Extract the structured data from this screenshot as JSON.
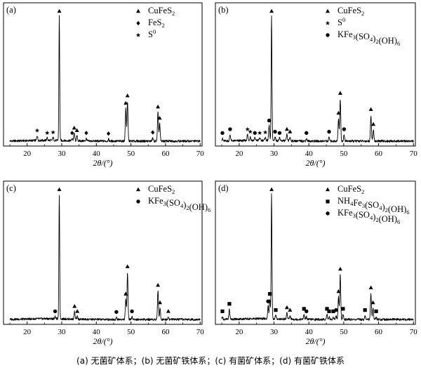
{
  "chart_data": [
    {
      "type": "line",
      "panel_label": "(a)",
      "xlabel": "2θ/(°)",
      "xlim": [
        15,
        70
      ],
      "xticks": [
        "20",
        "30",
        "40",
        "50",
        "60",
        "70"
      ],
      "legend": [
        {
          "marker": "triangle",
          "text": "CuFeS",
          "sub": "2",
          "sup": ""
        },
        {
          "marker": "diamond",
          "text": "FeS",
          "sub": "2",
          "sup": ""
        },
        {
          "marker": "star",
          "text": "S",
          "sub": "",
          "sup": "0"
        }
      ],
      "peaks": [
        {
          "x": 22.9,
          "h": 0.04,
          "marker": "star"
        },
        {
          "x": 25.8,
          "h": 0.02,
          "marker": "star"
        },
        {
          "x": 27.5,
          "h": 0.025,
          "marker": "star"
        },
        {
          "x": 29.3,
          "h": 1.0,
          "marker": "triangle"
        },
        {
          "x": 33.0,
          "h": 0.02,
          "marker": "diamond"
        },
        {
          "x": 33.6,
          "h": 0.06,
          "marker": "triangle"
        },
        {
          "x": 34.4,
          "h": 0.04,
          "marker": "triangle"
        },
        {
          "x": 37.1,
          "h": 0.02,
          "marker": "diamond"
        },
        {
          "x": 43.5,
          "h": 0.015,
          "marker": "diamond"
        },
        {
          "x": 48.5,
          "h": 0.26,
          "marker": "triangle"
        },
        {
          "x": 49.0,
          "h": 0.32,
          "marker": "triangle"
        },
        {
          "x": 56.3,
          "h": 0.025,
          "marker": "diamond"
        },
        {
          "x": 57.8,
          "h": 0.23,
          "marker": "triangle"
        },
        {
          "x": 58.3,
          "h": 0.14,
          "marker": "triangle"
        }
      ]
    },
    {
      "type": "line",
      "panel_label": "(b)",
      "xlabel": "2θ/(°)",
      "xlim": [
        15,
        70
      ],
      "xticks": [
        "20",
        "30",
        "40",
        "50",
        "60",
        "70"
      ],
      "legend": [
        {
          "marker": "triangle",
          "text": "CuFeS",
          "sub": "2",
          "sup": ""
        },
        {
          "marker": "star",
          "text": "S",
          "sub": "",
          "sup": "0"
        },
        {
          "marker": "circle",
          "text": "KFe",
          "sub": "3",
          "sup": "",
          "rest": "(SO",
          "sub2": "4",
          "rest2": ")",
          "sub3": "2",
          "rest3": "(OH)",
          "sub4": "6"
        }
      ],
      "peaks": [
        {
          "x": 15.2,
          "h": 0.02,
          "marker": "circle"
        },
        {
          "x": 17.4,
          "h": 0.05,
          "marker": "circle"
        },
        {
          "x": 22.4,
          "h": 0.05,
          "marker": "star"
        },
        {
          "x": 23.2,
          "h": 0.03,
          "marker": "star"
        },
        {
          "x": 24.5,
          "h": 0.02,
          "marker": "circle"
        },
        {
          "x": 25.9,
          "h": 0.02,
          "marker": "star"
        },
        {
          "x": 27.5,
          "h": 0.025,
          "marker": "star"
        },
        {
          "x": 28.6,
          "h": 0.12,
          "marker": "circle"
        },
        {
          "x": 29.3,
          "h": 1.0,
          "marker": "triangle"
        },
        {
          "x": 30.3,
          "h": 0.03,
          "marker": "circle"
        },
        {
          "x": 31.6,
          "h": 0.02,
          "marker": "circle"
        },
        {
          "x": 33.7,
          "h": 0.05,
          "marker": "triangle"
        },
        {
          "x": 34.6,
          "h": 0.03,
          "marker": "triangle"
        },
        {
          "x": 39.3,
          "h": 0.02,
          "marker": "circle"
        },
        {
          "x": 45.8,
          "h": 0.03,
          "marker": "circle"
        },
        {
          "x": 48.5,
          "h": 0.18,
          "marker": "triangle"
        },
        {
          "x": 49.0,
          "h": 0.34,
          "marker": "triangle"
        },
        {
          "x": 50.1,
          "h": 0.05,
          "marker": "circle"
        },
        {
          "x": 57.8,
          "h": 0.21,
          "marker": "triangle"
        },
        {
          "x": 58.5,
          "h": 0.09,
          "marker": "triangle"
        }
      ]
    },
    {
      "type": "line",
      "panel_label": "(c)",
      "xlabel": "2θ/(°)",
      "xlim": [
        15,
        70
      ],
      "xticks": [
        "20",
        "30",
        "40",
        "50",
        "60",
        "70"
      ],
      "legend": [
        {
          "marker": "triangle",
          "text": "CuFeS",
          "sub": "2",
          "sup": ""
        },
        {
          "marker": "circle",
          "text": "KFe",
          "sub": "3",
          "sup": "",
          "rest": "(SO",
          "sub2": "4",
          "rest2": ")",
          "sub3": "2",
          "rest3": "(OH)",
          "sub4": "6"
        }
      ],
      "peaks": [
        {
          "x": 28.1,
          "h": 0.02,
          "marker": "circle"
        },
        {
          "x": 29.3,
          "h": 1.0,
          "marker": "triangle"
        },
        {
          "x": 33.7,
          "h": 0.06,
          "marker": "triangle"
        },
        {
          "x": 34.5,
          "h": 0.02,
          "marker": "triangle"
        },
        {
          "x": 45.8,
          "h": 0.015,
          "marker": "circle"
        },
        {
          "x": 48.5,
          "h": 0.16,
          "marker": "triangle"
        },
        {
          "x": 49.0,
          "h": 0.38,
          "marker": "triangle"
        },
        {
          "x": 50.3,
          "h": 0.02,
          "marker": "circle"
        },
        {
          "x": 57.8,
          "h": 0.23,
          "marker": "triangle"
        },
        {
          "x": 58.4,
          "h": 0.09,
          "marker": "triangle"
        },
        {
          "x": 60.8,
          "h": 0.02,
          "marker": "triangle"
        }
      ]
    },
    {
      "type": "line",
      "panel_label": "(d)",
      "xlabel": "2θ/(°)",
      "xlim": [
        15,
        70
      ],
      "xticks": [
        "20",
        "30",
        "40",
        "50",
        "60",
        "70"
      ],
      "legend": [
        {
          "marker": "triangle",
          "text": "CuFeS",
          "sub": "2",
          "sup": ""
        },
        {
          "marker": "square",
          "text": "NH",
          "sub": "4",
          "sup": "",
          "rest": "Fe",
          "sub2": "3",
          "rest2": "(SO",
          "sub3": "4",
          "rest3": ")",
          "sub4": "2",
          "rest4": "(OH)",
          "sub5": "6"
        },
        {
          "marker": "circle",
          "text": "KFe",
          "sub": "3",
          "sup": "",
          "rest": "(SO",
          "sub2": "4",
          "rest2": ")",
          "sub3": "2",
          "rest3": "(OH)",
          "sub4": "6"
        }
      ],
      "peaks": [
        {
          "x": 15.2,
          "h": 0.02,
          "marker": "square"
        },
        {
          "x": 17.2,
          "h": 0.08,
          "marker": "square"
        },
        {
          "x": 28.3,
          "h": 0.1,
          "marker": "circle"
        },
        {
          "x": 28.8,
          "h": 0.16,
          "marker": "square"
        },
        {
          "x": 29.3,
          "h": 1.0,
          "marker": "triangle"
        },
        {
          "x": 30.5,
          "h": 0.03,
          "marker": "square"
        },
        {
          "x": 33.7,
          "h": 0.05,
          "marker": "triangle"
        },
        {
          "x": 34.6,
          "h": 0.03,
          "marker": "triangle"
        },
        {
          "x": 38.6,
          "h": 0.04,
          "marker": "square"
        },
        {
          "x": 39.3,
          "h": 0.02,
          "marker": "circle"
        },
        {
          "x": 45.2,
          "h": 0.04,
          "marker": "square"
        },
        {
          "x": 45.8,
          "h": 0.02,
          "marker": "square"
        },
        {
          "x": 47.0,
          "h": 0.02,
          "marker": "square"
        },
        {
          "x": 47.8,
          "h": 0.03,
          "marker": "circle"
        },
        {
          "x": 48.5,
          "h": 0.18,
          "marker": "triangle"
        },
        {
          "x": 49.0,
          "h": 0.36,
          "marker": "triangle"
        },
        {
          "x": 49.8,
          "h": 0.04,
          "marker": "square"
        },
        {
          "x": 56.1,
          "h": 0.03,
          "marker": "square"
        },
        {
          "x": 57.8,
          "h": 0.21,
          "marker": "triangle"
        },
        {
          "x": 58.4,
          "h": 0.09,
          "marker": "triangle"
        },
        {
          "x": 59.3,
          "h": 0.02,
          "marker": "square"
        }
      ]
    }
  ],
  "caption": "(a) 无菌矿体系；(b) 无菌矿铁体系；(c) 有菌矿体系；(d) 有菌矿铁体系"
}
